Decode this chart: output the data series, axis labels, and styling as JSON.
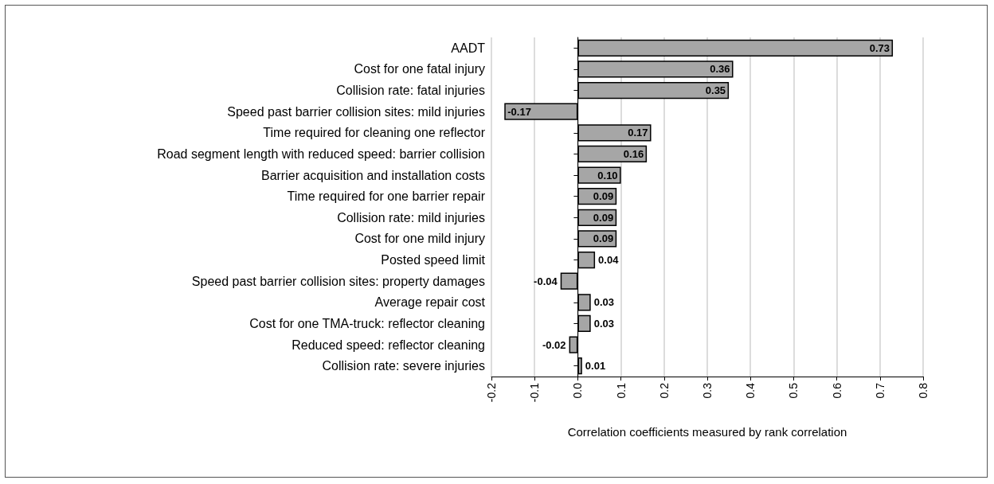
{
  "chart_data": {
    "type": "bar",
    "orientation": "horizontal",
    "xlabel": "Correlation coefficients measured by rank correlation",
    "categories": [
      "AADT",
      "Cost for one fatal injury",
      "Collision rate: fatal injuries",
      "Speed past barrier collision sites: mild injuries",
      "Time required for cleaning one reflector",
      "Road segment length with reduced speed: barrier collision",
      "Barrier acquisition and installation costs",
      "Time required for one barrier repair",
      "Collision rate: mild injuries",
      "Cost for one mild injury",
      "Posted speed limit",
      "Speed past barrier collision sites: property damages",
      "Average repair cost",
      "Cost for one TMA-truck: reflector cleaning",
      "Reduced speed: reflector cleaning",
      "Collision rate: severe injuries"
    ],
    "values": [
      0.73,
      0.36,
      0.35,
      -0.17,
      0.17,
      0.16,
      0.1,
      0.09,
      0.09,
      0.09,
      0.04,
      -0.04,
      0.03,
      0.03,
      -0.02,
      0.01
    ],
    "value_labels": [
      "0.73",
      "0.36",
      "0.35",
      "-0.17",
      "0.17",
      "0.16",
      "0.10",
      "0.09",
      "0.09",
      "0.09",
      "0.04",
      "-0.04",
      "0.03",
      "0.03",
      "-0.02",
      "0.01"
    ],
    "color": "#a6a6a6",
    "xlim": [
      -0.2,
      0.8
    ],
    "xticks": [
      {
        "value": -0.2,
        "label": "-0.2"
      },
      {
        "value": -0.1,
        "label": "-0.1"
      },
      {
        "value": 0,
        "label": "0.0"
      },
      {
        "value": 0.1,
        "label": "0.1"
      },
      {
        "value": 0.2,
        "label": "0.2"
      },
      {
        "value": 0.3,
        "label": "0.3"
      },
      {
        "value": 0.4,
        "label": "0.4"
      },
      {
        "value": 0.5,
        "label": "0.5"
      },
      {
        "value": 0.6,
        "label": "0.6"
      },
      {
        "value": 0.7,
        "label": "0.7"
      },
      {
        "value": 0.8,
        "label": "0.8"
      }
    ],
    "grid": "x"
  }
}
